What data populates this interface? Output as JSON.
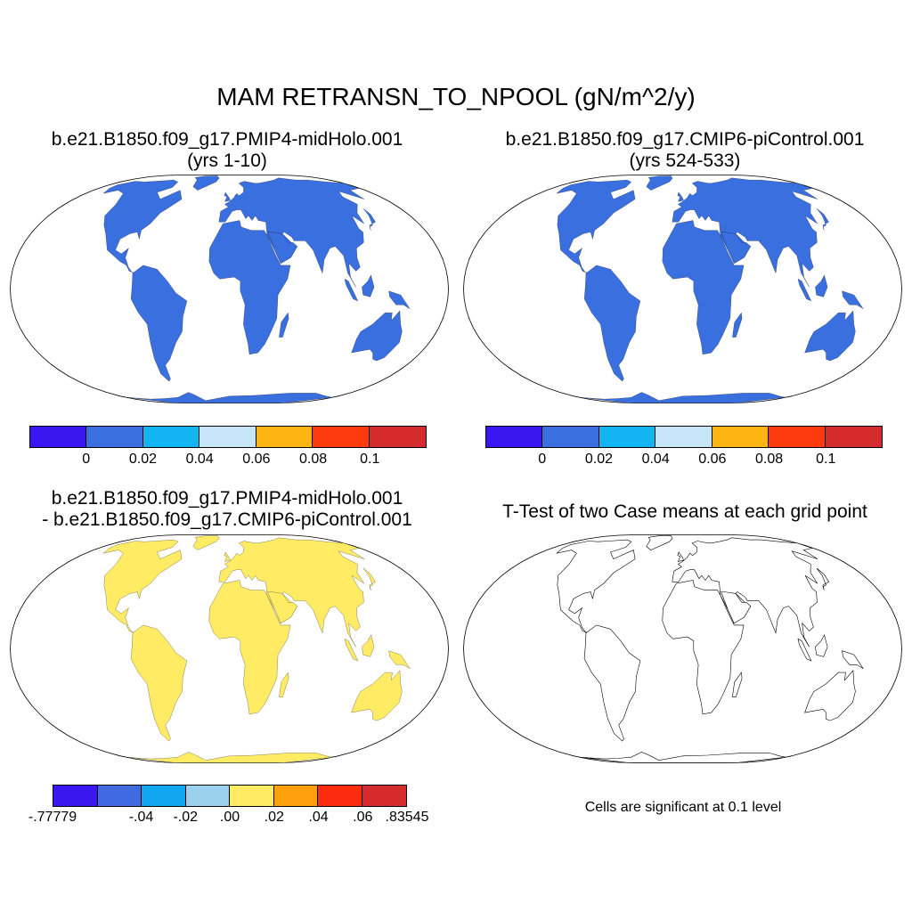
{
  "main_title": "MAM RETRANSN_TO_NPOOL (gN/m^2/y)",
  "panels": [
    {
      "title_line1": "b.e21.B1850.f09_g17.PMIP4-midHolo.001",
      "title_line2": "(yrs 1-10)"
    },
    {
      "title_line1": "b.e21.B1850.f09_g17.CMIP6-piControl.001",
      "title_line2": "(yrs 524-533)"
    },
    {
      "title_line1": "b.e21.B1850.f09_g17.PMIP4-midHolo.001",
      "title_line2": "- b.e21.B1850.f09_g17.CMIP6-piControl.001"
    },
    {
      "title_line1": "T-Test of two Case means at each grid point"
    }
  ],
  "colorbar_abs": {
    "colors": [
      "#3a16f0",
      "#3a6fe0",
      "#12b4f2",
      "#c6e6f8",
      "#fcb614",
      "#fc3c0c",
      "#d42c2c"
    ],
    "labels": [
      "0",
      "0.02",
      "0.04",
      "0.06",
      "0.08",
      "0.1"
    ]
  },
  "colorbar_diff": {
    "colors": [
      "#3a16f0",
      "#3f6ae0",
      "#12a6f0",
      "#9ad2ee",
      "#ffec64",
      "#fca00c",
      "#fc2c0c",
      "#d42c2c"
    ],
    "labels": [
      "-.77779",
      "-.04",
      "-.02",
      ".00",
      ".02",
      ".04",
      ".06",
      ".83545"
    ]
  },
  "map_colors": {
    "ocean": "#ffffff",
    "coast": "#000000",
    "land_abs": "#3a6fe0",
    "land_diff": "#ffec64",
    "significant": "#e8000b"
  },
  "significance_note": "Cells are significant at 0.1 level"
}
